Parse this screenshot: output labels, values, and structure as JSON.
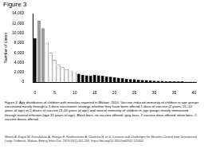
{
  "heading": "Figure 3",
  "caption": "Figure 3. Age distribution of children with measles reported in Malawi, 2010. Vaccine-induced immunity of children in age groups vaccinated mostly through a 2-dose vaccination strategy, whether they have been offered 1 dose of vaccine (2 years, 21–10 years of age) or 2 doses of vaccine (3–10 years of age) and natural immunity of children in age groups mostly immunized through natural infection (age 31 years of age). Black bars, no vaccine offered; gray bars, 1 vaccine dose offered; white bars, 2 vaccine doses offered.",
  "citation": "Minetti A, Kagoli M, Katsulukuta A, Huerga H, Featherstone A, Chiotcha H, et al. Lessons and Challenges for Measles Control from Unexpected Large Outbreak, Malawi. Emerg Infect Dis. 2013;19(2):202-209. https://doi.org/10.3201/eid1902.120301",
  "chart_data": {
    "type": "bar",
    "y_label": "Number of cases",
    "categories": [
      "0",
      null,
      null,
      null,
      null,
      "5",
      null,
      null,
      null,
      null,
      "10",
      null,
      null,
      null,
      null,
      "15",
      null,
      null,
      null,
      null,
      "20",
      null,
      null,
      null,
      null,
      "25",
      null,
      null,
      null,
      null,
      "30",
      null,
      null,
      null,
      null,
      "35",
      null,
      null,
      null,
      null,
      "40"
    ],
    "values": [
      9000,
      12500,
      11000,
      8000,
      6000,
      4500,
      3500,
      3000,
      2600,
      2300,
      2000,
      1700,
      1500,
      1400,
      1300,
      1500,
      1400,
      1300,
      1200,
      1100,
      1000,
      900,
      800,
      700,
      600,
      600,
      500,
      450,
      400,
      350,
      300,
      250,
      250,
      200,
      200,
      150,
      150,
      150,
      100,
      100,
      100
    ],
    "colors": [
      "#000000",
      "#999999",
      "#999999",
      "#ffffff",
      "#ffffff",
      "#ffffff",
      "#ffffff",
      "#ffffff",
      "#ffffff",
      "#ffffff",
      "#ffffff",
      "#000000",
      "#000000",
      "#000000",
      "#000000",
      "#000000",
      "#000000",
      "#000000",
      "#000000",
      "#000000",
      "#000000",
      "#000000",
      "#000000",
      "#000000",
      "#000000",
      "#000000",
      "#000000",
      "#000000",
      "#000000",
      "#000000",
      "#000000",
      "#000000",
      "#000000",
      "#000000",
      "#000000",
      "#000000",
      "#000000",
      "#000000",
      "#000000",
      "#000000",
      "#000000"
    ],
    "ylim": [
      0,
      14000
    ],
    "yticks": [
      0,
      2000,
      4000,
      6000,
      8000,
      10000,
      12000,
      14000
    ],
    "grid": false
  }
}
